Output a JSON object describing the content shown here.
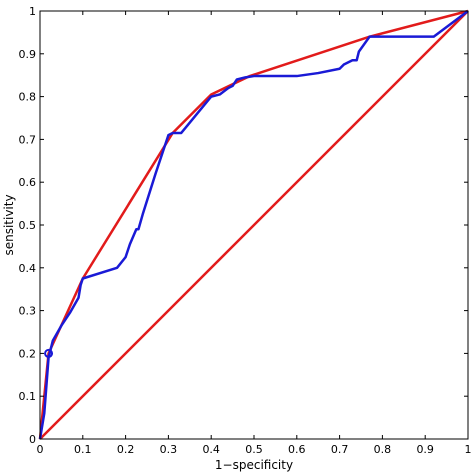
{
  "chart_data": {
    "type": "line",
    "title": "",
    "xlabel": "1−specificity",
    "ylabel": "sensitivity",
    "xlim": [
      0,
      1
    ],
    "ylim": [
      0,
      1
    ],
    "grid": false,
    "legend": "none",
    "xticks": [
      "0",
      "0.1",
      "0.2",
      "0.3",
      "0.4",
      "0.5",
      "0.6",
      "0.7",
      "0.8",
      "0.9",
      "1"
    ],
    "yticks": [
      "0",
      "0.1",
      "0.2",
      "0.3",
      "0.4",
      "0.5",
      "0.6",
      "0.7",
      "0.8",
      "0.9",
      "1"
    ],
    "series": [
      {
        "color": "#e21b1b",
        "x": [
          0,
          1
        ],
        "y": [
          0,
          1
        ]
      },
      {
        "color": "#e21b1b",
        "x": [
          0,
          0.02,
          0.1,
          0.31,
          0.4,
          0.49,
          0.77,
          1
        ],
        "y": [
          0,
          0.2,
          0.375,
          0.715,
          0.805,
          0.848,
          0.94,
          1
        ]
      },
      {
        "color": "#1a1ad6",
        "x": [
          0,
          0.01,
          0.02,
          0.03,
          0.05,
          0.07,
          0.09,
          0.095,
          0.1,
          0.18,
          0.2,
          0.21,
          0.225,
          0.23,
          0.24,
          0.27,
          0.3,
          0.31,
          0.33,
          0.4,
          0.42,
          0.44,
          0.45,
          0.46,
          0.48,
          0.5,
          0.6,
          0.65,
          0.7,
          0.71,
          0.73,
          0.74,
          0.745,
          0.77,
          0.92,
          1
        ],
        "y": [
          0,
          0.06,
          0.19,
          0.23,
          0.265,
          0.295,
          0.33,
          0.36,
          0.375,
          0.4,
          0.425,
          0.455,
          0.49,
          0.49,
          0.525,
          0.62,
          0.71,
          0.715,
          0.715,
          0.8,
          0.805,
          0.82,
          0.825,
          0.84,
          0.845,
          0.848,
          0.848,
          0.855,
          0.865,
          0.875,
          0.885,
          0.885,
          0.905,
          0.94,
          0.94,
          1
        ]
      }
    ],
    "marker": {
      "x": 0.02,
      "y": 0.2,
      "color": "#1a1ad6",
      "shape": "circle"
    }
  }
}
